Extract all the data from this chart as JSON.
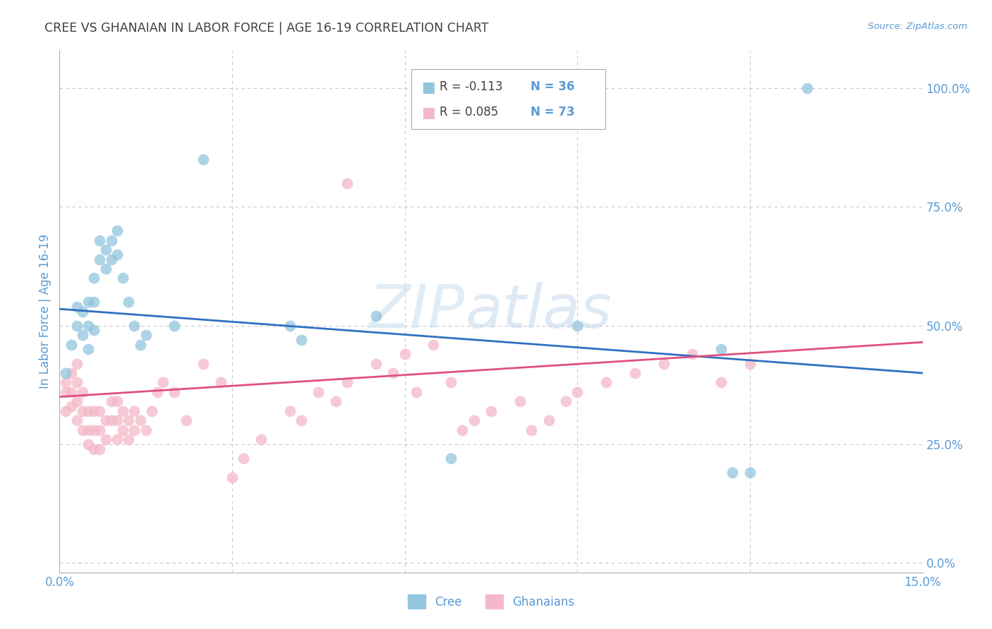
{
  "title": "CREE VS GHANAIAN IN LABOR FORCE | AGE 16-19 CORRELATION CHART",
  "source": "Source: ZipAtlas.com",
  "ylabel": "In Labor Force | Age 16-19",
  "xlim": [
    0.0,
    0.15
  ],
  "ylim": [
    -0.02,
    1.08
  ],
  "xticks": [
    0.0,
    0.03,
    0.06,
    0.09,
    0.12,
    0.15
  ],
  "xtick_labels": [
    "0.0%",
    "",
    "",
    "",
    "",
    "15.0%"
  ],
  "ytick_labels_right": [
    "100.0%",
    "75.0%",
    "50.0%",
    "25.0%",
    "0.0%"
  ],
  "ytick_positions_right": [
    1.0,
    0.75,
    0.5,
    0.25,
    0.0
  ],
  "legend_blue_r": "R = -0.113",
  "legend_blue_n": "N = 36",
  "legend_pink_r": "R = 0.085",
  "legend_pink_n": "N = 73",
  "blue_color": "#92c5de",
  "pink_color": "#f4b8c8",
  "trendline_blue_color": "#3070c0",
  "trendline_pink_color": "#e05080",
  "grid_color": "#c8c8c8",
  "bg_color": "#ffffff",
  "title_color": "#404040",
  "axis_label_color": "#5b9bd5",
  "watermark_zip": "ZIP",
  "watermark_atlas": "atlas",
  "blue_trend_x0": 0.0,
  "blue_trend_y0": 0.535,
  "blue_trend_x1": 0.15,
  "blue_trend_y1": 0.4,
  "pink_trend_x0": 0.0,
  "pink_trend_y0": 0.35,
  "pink_trend_x1": 0.15,
  "pink_trend_y1": 0.465,
  "cree_x": [
    0.001,
    0.002,
    0.003,
    0.003,
    0.004,
    0.004,
    0.005,
    0.005,
    0.005,
    0.006,
    0.006,
    0.006,
    0.007,
    0.007,
    0.008,
    0.008,
    0.009,
    0.009,
    0.01,
    0.01,
    0.011,
    0.012,
    0.013,
    0.014,
    0.015,
    0.02,
    0.025,
    0.04,
    0.042,
    0.055,
    0.068,
    0.09,
    0.115,
    0.117,
    0.12,
    0.13
  ],
  "cree_y": [
    0.4,
    0.46,
    0.5,
    0.54,
    0.48,
    0.53,
    0.5,
    0.55,
    0.45,
    0.49,
    0.55,
    0.6,
    0.64,
    0.68,
    0.62,
    0.66,
    0.64,
    0.68,
    0.65,
    0.7,
    0.6,
    0.55,
    0.5,
    0.46,
    0.48,
    0.5,
    0.85,
    0.5,
    0.47,
    0.52,
    0.22,
    0.5,
    0.45,
    0.19,
    0.19,
    1.0
  ],
  "ghanaian_x": [
    0.001,
    0.001,
    0.001,
    0.002,
    0.002,
    0.002,
    0.003,
    0.003,
    0.003,
    0.003,
    0.004,
    0.004,
    0.004,
    0.005,
    0.005,
    0.005,
    0.006,
    0.006,
    0.006,
    0.007,
    0.007,
    0.007,
    0.008,
    0.008,
    0.009,
    0.009,
    0.01,
    0.01,
    0.01,
    0.011,
    0.011,
    0.012,
    0.012,
    0.013,
    0.013,
    0.014,
    0.015,
    0.016,
    0.017,
    0.018,
    0.02,
    0.022,
    0.025,
    0.028,
    0.03,
    0.032,
    0.035,
    0.04,
    0.042,
    0.045,
    0.048,
    0.05,
    0.055,
    0.058,
    0.06,
    0.062,
    0.065,
    0.068,
    0.07,
    0.072,
    0.075,
    0.08,
    0.082,
    0.085,
    0.088,
    0.09,
    0.095,
    0.1,
    0.105,
    0.11,
    0.115,
    0.12,
    0.05
  ],
  "ghanaian_y": [
    0.36,
    0.32,
    0.38,
    0.33,
    0.36,
    0.4,
    0.3,
    0.34,
    0.38,
    0.42,
    0.28,
    0.32,
    0.36,
    0.25,
    0.28,
    0.32,
    0.24,
    0.28,
    0.32,
    0.24,
    0.28,
    0.32,
    0.26,
    0.3,
    0.3,
    0.34,
    0.26,
    0.3,
    0.34,
    0.28,
    0.32,
    0.26,
    0.3,
    0.28,
    0.32,
    0.3,
    0.28,
    0.32,
    0.36,
    0.38,
    0.36,
    0.3,
    0.42,
    0.38,
    0.18,
    0.22,
    0.26,
    0.32,
    0.3,
    0.36,
    0.34,
    0.38,
    0.42,
    0.4,
    0.44,
    0.36,
    0.46,
    0.38,
    0.28,
    0.3,
    0.32,
    0.34,
    0.28,
    0.3,
    0.34,
    0.36,
    0.38,
    0.4,
    0.42,
    0.44,
    0.38,
    0.42,
    0.8
  ]
}
